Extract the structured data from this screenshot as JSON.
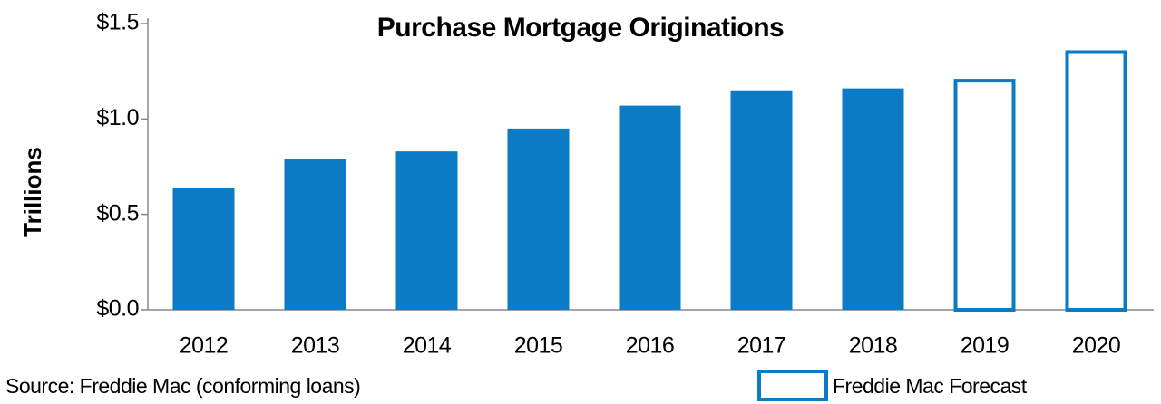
{
  "chart_data": {
    "type": "bar",
    "title": "Purchase Mortgage Originations",
    "y_label": "Trillions",
    "source": "Source: Freddie Mac (conforming loans)",
    "categories": [
      "2012",
      "2013",
      "2014",
      "2015",
      "2016",
      "2017",
      "2018",
      "2019",
      "2020"
    ],
    "series": [
      {
        "color": "#0a7bc4",
        "style": "filled",
        "values": [
          0.64,
          0.79,
          0.83,
          0.95,
          1.07,
          1.15,
          1.16,
          null,
          null
        ]
      },
      {
        "name": "Freddie Mac Forecast",
        "color": "#0a7bc4",
        "style": "outline",
        "values": [
          null,
          null,
          null,
          null,
          null,
          null,
          null,
          1.21,
          1.36
        ]
      }
    ],
    "ylim": [
      0,
      1.5
    ],
    "yticks": [
      {
        "value": 0,
        "label": "$0.0"
      },
      {
        "value": 0.5,
        "label": "$0.5"
      },
      {
        "value": 1,
        "label": "$1.0"
      },
      {
        "value": 1.5,
        "label": "$1.5"
      }
    ],
    "grid": false
  }
}
